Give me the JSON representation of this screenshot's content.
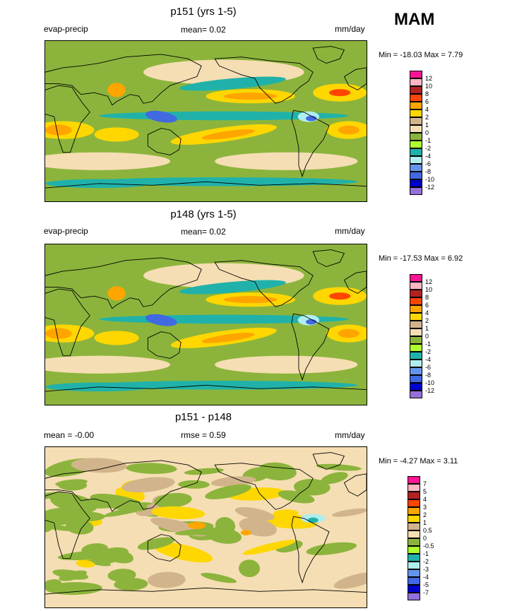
{
  "season": "MAM",
  "colors": {
    "seq12": [
      "#ff1493",
      "#ffb6c1",
      "#b22222",
      "#ff4500",
      "#ffa500",
      "#ffd700",
      "#d2b48c",
      "#f5deb3",
      "#8cb43c",
      "#adff2f",
      "#20b2aa",
      "#afeeee",
      "#6495ed",
      "#4169e1",
      "#0000cd",
      "#9370db"
    ]
  },
  "panels": [
    {
      "id": "p151",
      "title": "p151 (yrs 1-5)",
      "left_label": "evap-precip",
      "center_label": "mean=  0.02",
      "units": "mm/day",
      "stats": "Min = -18.03 Max =   7.79",
      "legend_labels": [
        "12",
        "10",
        "8",
        "6",
        "4",
        "2",
        "1",
        "0",
        "-1",
        "-2",
        "-4",
        "-6",
        "-8",
        "-10",
        "-12"
      ]
    },
    {
      "id": "p148",
      "title": "p148 (yrs 1-5)",
      "left_label": "evap-precip",
      "center_label": "mean=  0.02",
      "units": "mm/day",
      "stats": "Min = -17.53 Max =   6.92",
      "legend_labels": [
        "12",
        "10",
        "8",
        "6",
        "4",
        "2",
        "1",
        "0",
        "-1",
        "-2",
        "-4",
        "-6",
        "-8",
        "-10",
        "-12"
      ]
    },
    {
      "id": "diff",
      "title": "p151 - p148",
      "left_label": "mean =  -0.00",
      "center_label": "rmse =  0.59",
      "units": "mm/day",
      "stats": "Min =  -4.27 Max =   3.11",
      "legend_labels": [
        "7",
        "5",
        "4",
        "3",
        "2",
        "1",
        "0.5",
        "0",
        "-0.5",
        "-1",
        "-2",
        "-3",
        "-4",
        "-5",
        "-7"
      ]
    }
  ]
}
